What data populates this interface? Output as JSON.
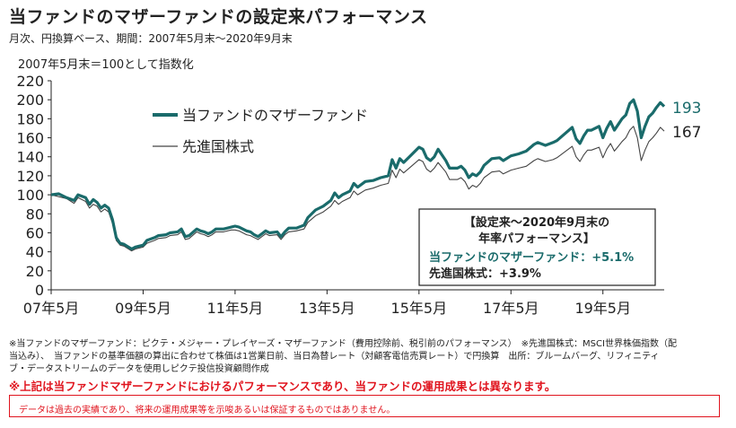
{
  "title": "当ファンドのマザーファンドの設定来パフォーマンス",
  "subtitle": "月次、円換算ベース、期間：2007年5月末〜2020年9月末",
  "chart_data": {
    "type": "line",
    "ylabel": "2007年5月末＝100として指数化",
    "ylim": [
      0,
      220
    ],
    "yticks": [
      0,
      20,
      40,
      60,
      80,
      100,
      120,
      140,
      160,
      180,
      200,
      220
    ],
    "xlim": [
      2007.417,
      2020.75
    ],
    "xticks": [
      {
        "label": "07年5月",
        "x": 2007.417
      },
      {
        "label": "09年5月",
        "x": 2009.417
      },
      {
        "label": "11年5月",
        "x": 2011.417
      },
      {
        "label": "13年5月",
        "x": 2013.417
      },
      {
        "label": "15年5月",
        "x": 2015.417
      },
      {
        "label": "17年5月",
        "x": 2017.417
      },
      {
        "label": "19年5月",
        "x": 2019.417
      }
    ],
    "grid": false,
    "legend_position": "top-left",
    "series": [
      {
        "name": "当ファンドのマザーファンド",
        "color": "#1a6b6b",
        "end_label": "193",
        "points": [
          [
            2007.417,
            100
          ],
          [
            2007.583,
            101
          ],
          [
            2007.75,
            97
          ],
          [
            2007.917,
            94
          ],
          [
            2008.0,
            100
          ],
          [
            2008.167,
            97
          ],
          [
            2008.25,
            90
          ],
          [
            2008.333,
            95
          ],
          [
            2008.417,
            92
          ],
          [
            2008.5,
            86
          ],
          [
            2008.583,
            89
          ],
          [
            2008.667,
            86
          ],
          [
            2008.75,
            74
          ],
          [
            2008.833,
            55
          ],
          [
            2008.917,
            49
          ],
          [
            2009.0,
            48
          ],
          [
            2009.167,
            43
          ],
          [
            2009.25,
            45
          ],
          [
            2009.417,
            47
          ],
          [
            2009.5,
            52
          ],
          [
            2009.667,
            55
          ],
          [
            2009.75,
            57
          ],
          [
            2009.917,
            58
          ],
          [
            2010.0,
            60
          ],
          [
            2010.167,
            61
          ],
          [
            2010.25,
            64
          ],
          [
            2010.333,
            56
          ],
          [
            2010.417,
            57
          ],
          [
            2010.583,
            64
          ],
          [
            2010.667,
            62
          ],
          [
            2010.75,
            61
          ],
          [
            2010.833,
            59
          ],
          [
            2010.917,
            61
          ],
          [
            2011.0,
            64
          ],
          [
            2011.167,
            64
          ],
          [
            2011.333,
            66
          ],
          [
            2011.417,
            67
          ],
          [
            2011.5,
            66
          ],
          [
            2011.667,
            62
          ],
          [
            2011.75,
            61
          ],
          [
            2011.833,
            58
          ],
          [
            2011.917,
            56
          ],
          [
            2012.0,
            59
          ],
          [
            2012.083,
            62
          ],
          [
            2012.167,
            60
          ],
          [
            2012.333,
            61
          ],
          [
            2012.417,
            56
          ],
          [
            2012.5,
            61
          ],
          [
            2012.583,
            65
          ],
          [
            2012.75,
            65
          ],
          [
            2012.917,
            68
          ],
          [
            2013.0,
            76
          ],
          [
            2013.167,
            84
          ],
          [
            2013.333,
            88
          ],
          [
            2013.5,
            94
          ],
          [
            2013.583,
            102
          ],
          [
            2013.667,
            97
          ],
          [
            2013.75,
            100
          ],
          [
            2013.917,
            104
          ],
          [
            2014.0,
            112
          ],
          [
            2014.083,
            108
          ],
          [
            2014.25,
            114
          ],
          [
            2014.417,
            115
          ],
          [
            2014.583,
            118
          ],
          [
            2014.75,
            120
          ],
          [
            2014.833,
            137
          ],
          [
            2014.917,
            128
          ],
          [
            2015.0,
            138
          ],
          [
            2015.083,
            134
          ],
          [
            2015.25,
            142
          ],
          [
            2015.417,
            150
          ],
          [
            2015.5,
            148
          ],
          [
            2015.583,
            139
          ],
          [
            2015.667,
            136
          ],
          [
            2015.75,
            140
          ],
          [
            2015.833,
            148
          ],
          [
            2016.0,
            136
          ],
          [
            2016.083,
            128
          ],
          [
            2016.25,
            128
          ],
          [
            2016.333,
            130
          ],
          [
            2016.417,
            126
          ],
          [
            2016.5,
            118
          ],
          [
            2016.583,
            122
          ],
          [
            2016.667,
            120
          ],
          [
            2016.75,
            124
          ],
          [
            2016.833,
            131
          ],
          [
            2017.0,
            138
          ],
          [
            2017.167,
            139
          ],
          [
            2017.25,
            136
          ],
          [
            2017.417,
            141
          ],
          [
            2017.583,
            143
          ],
          [
            2017.75,
            146
          ],
          [
            2017.917,
            153
          ],
          [
            2018.0,
            155
          ],
          [
            2018.167,
            152
          ],
          [
            2018.333,
            155
          ],
          [
            2018.417,
            157
          ],
          [
            2018.583,
            164
          ],
          [
            2018.75,
            171
          ],
          [
            2018.833,
            159
          ],
          [
            2018.917,
            154
          ],
          [
            2019.0,
            162
          ],
          [
            2019.083,
            168
          ],
          [
            2019.167,
            168
          ],
          [
            2019.333,
            172
          ],
          [
            2019.417,
            160
          ],
          [
            2019.5,
            170
          ],
          [
            2019.583,
            177
          ],
          [
            2019.667,
            168
          ],
          [
            2019.75,
            174
          ],
          [
            2019.833,
            180
          ],
          [
            2019.917,
            184
          ],
          [
            2020.0,
            196
          ],
          [
            2020.083,
            200
          ],
          [
            2020.167,
            188
          ],
          [
            2020.25,
            160
          ],
          [
            2020.333,
            172
          ],
          [
            2020.417,
            182
          ],
          [
            2020.5,
            186
          ],
          [
            2020.583,
            192
          ],
          [
            2020.667,
            197
          ],
          [
            2020.75,
            193
          ]
        ]
      },
      {
        "name": "先進国株式",
        "color": "#444444",
        "end_label": "167",
        "points": [
          [
            2007.417,
            100
          ],
          [
            2007.583,
            98
          ],
          [
            2007.75,
            96
          ],
          [
            2007.917,
            91
          ],
          [
            2008.0,
            97
          ],
          [
            2008.167,
            93
          ],
          [
            2008.25,
            86
          ],
          [
            2008.333,
            90
          ],
          [
            2008.417,
            88
          ],
          [
            2008.5,
            82
          ],
          [
            2008.583,
            85
          ],
          [
            2008.667,
            82
          ],
          [
            2008.75,
            70
          ],
          [
            2008.833,
            52
          ],
          [
            2008.917,
            47
          ],
          [
            2009.0,
            46
          ],
          [
            2009.167,
            41
          ],
          [
            2009.25,
            43
          ],
          [
            2009.417,
            45
          ],
          [
            2009.5,
            49
          ],
          [
            2009.667,
            52
          ],
          [
            2009.75,
            54
          ],
          [
            2009.917,
            55
          ],
          [
            2010.0,
            57
          ],
          [
            2010.167,
            58
          ],
          [
            2010.25,
            61
          ],
          [
            2010.333,
            53
          ],
          [
            2010.417,
            54
          ],
          [
            2010.583,
            61
          ],
          [
            2010.667,
            59
          ],
          [
            2010.75,
            58
          ],
          [
            2010.833,
            56
          ],
          [
            2010.917,
            58
          ],
          [
            2011.0,
            61
          ],
          [
            2011.167,
            61
          ],
          [
            2011.333,
            63
          ],
          [
            2011.417,
            63
          ],
          [
            2011.5,
            62
          ],
          [
            2011.667,
            58
          ],
          [
            2011.75,
            57
          ],
          [
            2011.833,
            55
          ],
          [
            2011.917,
            53
          ],
          [
            2012.0,
            56
          ],
          [
            2012.083,
            59
          ],
          [
            2012.167,
            57
          ],
          [
            2012.333,
            58
          ],
          [
            2012.417,
            53
          ],
          [
            2012.5,
            58
          ],
          [
            2012.583,
            61
          ],
          [
            2012.75,
            62
          ],
          [
            2012.917,
            64
          ],
          [
            2013.0,
            71
          ],
          [
            2013.167,
            78
          ],
          [
            2013.333,
            82
          ],
          [
            2013.5,
            88
          ],
          [
            2013.583,
            94
          ],
          [
            2013.667,
            90
          ],
          [
            2013.75,
            93
          ],
          [
            2013.917,
            97
          ],
          [
            2014.0,
            104
          ],
          [
            2014.083,
            100
          ],
          [
            2014.25,
            105
          ],
          [
            2014.417,
            107
          ],
          [
            2014.583,
            110
          ],
          [
            2014.75,
            112
          ],
          [
            2014.833,
            126
          ],
          [
            2014.917,
            118
          ],
          [
            2015.0,
            127
          ],
          [
            2015.083,
            123
          ],
          [
            2015.25,
            130
          ],
          [
            2015.417,
            137
          ],
          [
            2015.5,
            135
          ],
          [
            2015.583,
            127
          ],
          [
            2015.667,
            124
          ],
          [
            2015.75,
            128
          ],
          [
            2015.833,
            134
          ],
          [
            2016.0,
            124
          ],
          [
            2016.083,
            116
          ],
          [
            2016.25,
            116
          ],
          [
            2016.333,
            118
          ],
          [
            2016.417,
            114
          ],
          [
            2016.5,
            106
          ],
          [
            2016.583,
            110
          ],
          [
            2016.667,
            108
          ],
          [
            2016.75,
            112
          ],
          [
            2016.833,
            118
          ],
          [
            2017.0,
            124
          ],
          [
            2017.167,
            125
          ],
          [
            2017.25,
            122
          ],
          [
            2017.417,
            126
          ],
          [
            2017.583,
            128
          ],
          [
            2017.75,
            130
          ],
          [
            2017.917,
            136
          ],
          [
            2018.0,
            138
          ],
          [
            2018.167,
            135
          ],
          [
            2018.333,
            137
          ],
          [
            2018.417,
            139
          ],
          [
            2018.583,
            145
          ],
          [
            2018.75,
            151
          ],
          [
            2018.833,
            140
          ],
          [
            2018.917,
            135
          ],
          [
            2019.0,
            142
          ],
          [
            2019.083,
            147
          ],
          [
            2019.167,
            147
          ],
          [
            2019.333,
            150
          ],
          [
            2019.417,
            139
          ],
          [
            2019.5,
            148
          ],
          [
            2019.583,
            154
          ],
          [
            2019.667,
            146
          ],
          [
            2019.75,
            151
          ],
          [
            2019.833,
            156
          ],
          [
            2019.917,
            160
          ],
          [
            2020.0,
            168
          ],
          [
            2020.083,
            172
          ],
          [
            2020.167,
            160
          ],
          [
            2020.25,
            136
          ],
          [
            2020.333,
            147
          ],
          [
            2020.417,
            156
          ],
          [
            2020.5,
            160
          ],
          [
            2020.583,
            165
          ],
          [
            2020.667,
            171
          ],
          [
            2020.75,
            167
          ]
        ]
      }
    ],
    "annotation_box": {
      "title_line1": "【設定来〜2020年9月末の",
      "title_line2": "年率パフォーマンス】",
      "fund_line": "当ファンドのマザーファンド：+5.1%",
      "index_line": "先進国株式：+3.9%"
    }
  },
  "footnotes": {
    "line1": "※当ファンドのマザーファンド：ピクテ・メジャー・プレイヤーズ・マザーファンド（費用控除前、税引前のパフォーマンス）　※先進国株式：MSCI世界株価指数（配",
    "line2": "当込み）、　当ファンドの基準価額の算出に合わせて株価は1営業日前、当日為替レート（対顧客電信売買レート）で円換算　出所：ブルームバーグ、リフィニティ",
    "line3": "ブ・データストリームのデータを使用しピクテ投信投資顧問作成"
  },
  "warning": "※上記は当ファンドマザーファンドにおけるパフォーマンスであり、当ファンドの運用成果とは異なります。",
  "disclaimer": "データは過去の実績であり、将来の運用成果等を示唆あるいは保証するものではありません。"
}
